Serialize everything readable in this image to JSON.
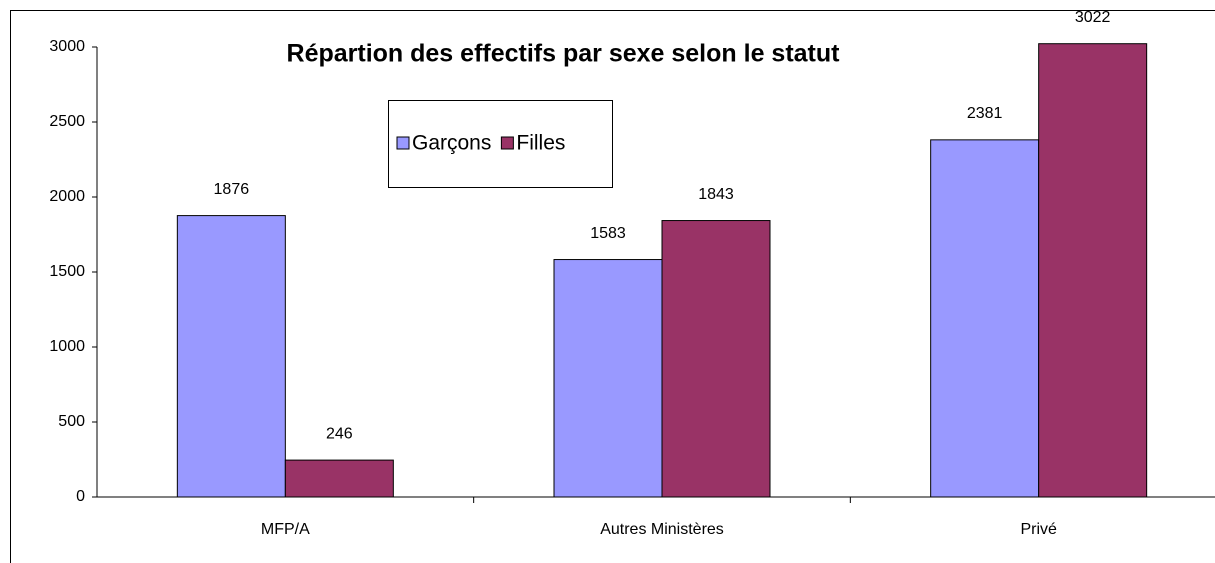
{
  "chart_data": {
    "type": "bar",
    "title": "Répartion des effectifs par sexe selon le statut",
    "categories": [
      "MFP/A",
      "Autres Ministères",
      "Privé"
    ],
    "series": [
      {
        "name": "Garçons",
        "color": "#9999ff",
        "values": [
          1876,
          1583,
          2381
        ]
      },
      {
        "name": "Filles",
        "color": "#993366",
        "values": [
          246,
          1843,
          3022
        ]
      }
    ],
    "ylim": [
      0,
      3000
    ],
    "yticks": [
      0,
      500,
      1000,
      1500,
      2000,
      2500,
      3000
    ],
    "grid": false,
    "legend": "top"
  }
}
